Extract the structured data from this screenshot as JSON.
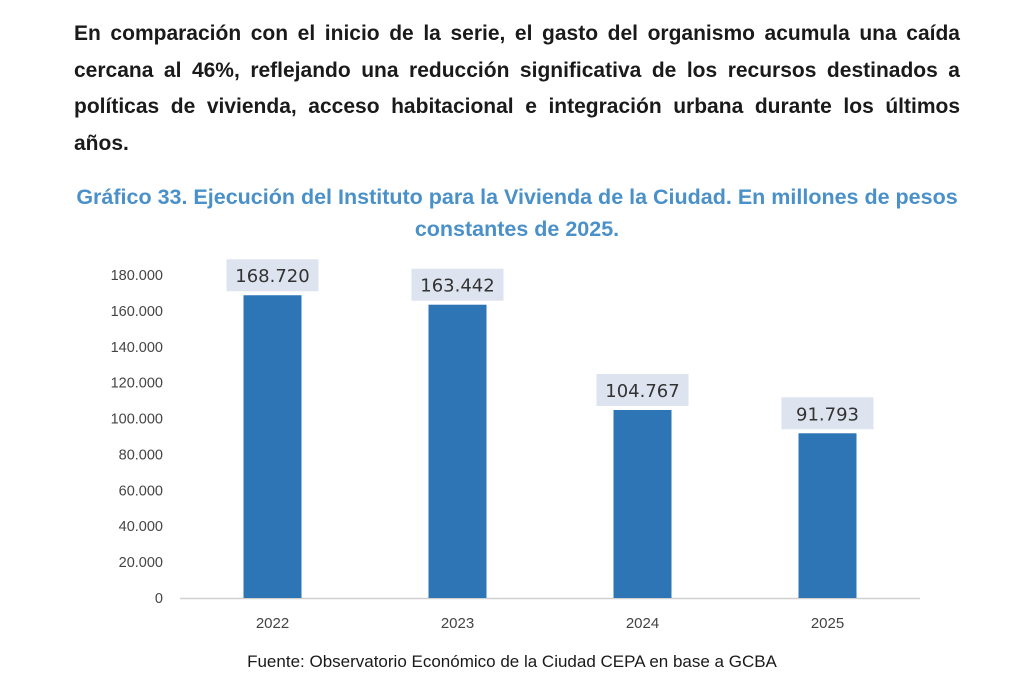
{
  "intro_text": "En comparación con el inicio de la serie, el gasto del organismo acumula una caída cercana al 46%, reflejando una reducción significativa de los recursos destinados a políticas de vivienda, acceso habitacional e integración urbana durante los últimos años.",
  "source": "Fuente: Observatorio Económico de la Ciudad CEPA en base a GCBA",
  "colors": {
    "bar": "#2e75b6",
    "label_bg": "#dee3f0",
    "title": "#4a90c9",
    "axis": "#d0d0d0"
  },
  "chart_data": {
    "type": "bar",
    "title": "Gráfico 33. Ejecución del Instituto para la Vivienda de la Ciudad. En millones de pesos constantes de 2025.",
    "categories": [
      "2022",
      "2023",
      "2024",
      "2025"
    ],
    "values": [
      168720,
      163442,
      104767,
      91793
    ],
    "data_labels": [
      "168.720",
      "163.442",
      "104.767",
      "91.793"
    ],
    "y_ticks": [
      0,
      20000,
      40000,
      60000,
      80000,
      100000,
      120000,
      140000,
      160000,
      180000
    ],
    "y_tick_labels": [
      "0",
      "20.000",
      "40.000",
      "60.000",
      "80.000",
      "100.000",
      "120.000",
      "140.000",
      "160.000",
      "180.000"
    ],
    "ylim": [
      0,
      180000
    ],
    "xlabel": "",
    "ylabel": "",
    "grid": false,
    "legend": false
  }
}
